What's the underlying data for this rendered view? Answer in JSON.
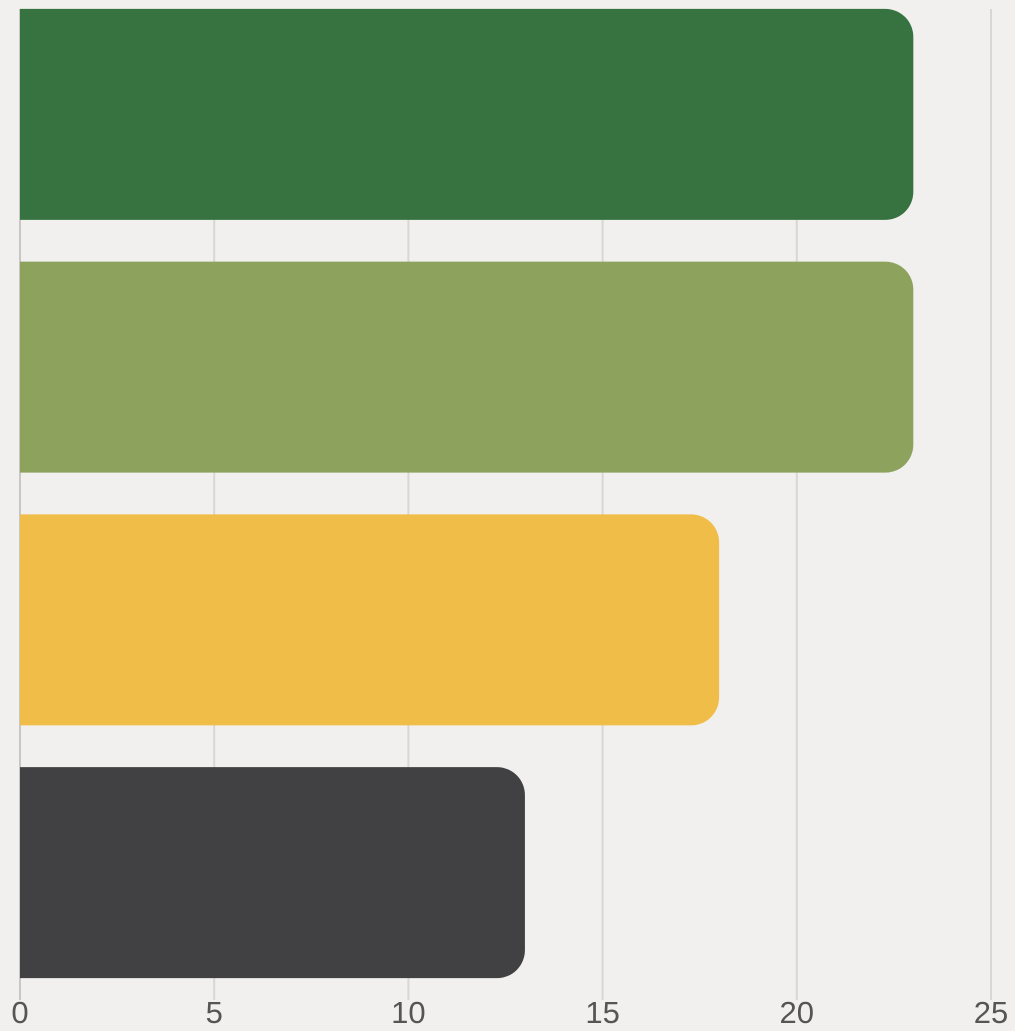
{
  "chart_data": {
    "type": "hbar",
    "categories": [
      null,
      null,
      null,
      null
    ],
    "values": [
      23,
      23,
      18,
      13
    ],
    "colors": [
      "#367340",
      "#8da35d",
      "#f0bd48",
      "#414042"
    ],
    "xlim": [
      0,
      25
    ],
    "xticks": [
      0,
      5,
      10,
      15,
      20,
      25
    ],
    "grid": true
  }
}
